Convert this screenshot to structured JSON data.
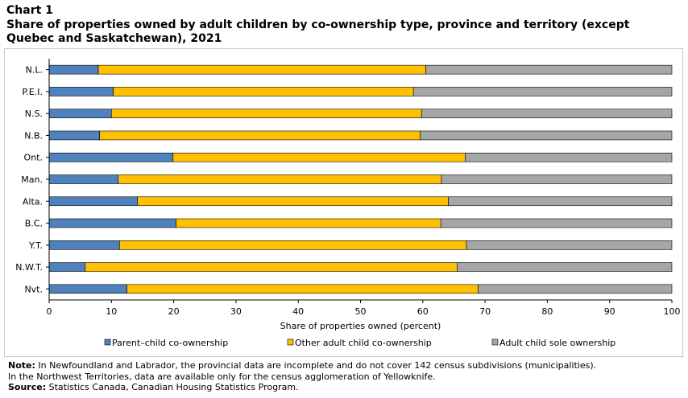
{
  "header": {
    "chart_label": "Chart 1",
    "title": "Share of properties owned by adult children  by co-ownership type, province and territory (except Quebec and Saskatchewan), 2021"
  },
  "footer": {
    "note_label": "Note:",
    "note_text": "In Newfoundland and Labrador, the provincial data are incomplete and do not cover 142 census subdivisions (municipalities).",
    "note_text_2": "In the Northwest Territories, data are available only for the census agglomeration of Yellowknife.",
    "source_label": "Source:",
    "source_text": "Statistics Canada, Canadian Housing Statistics Program."
  },
  "chart_data": {
    "type": "bar",
    "orientation": "horizontal",
    "stacked": true,
    "categories": [
      "N.L.",
      "P.E.I.",
      "N.S.",
      "N.B.",
      "Ont.",
      "Man.",
      "Alta.",
      "B.C.",
      "Y.T.",
      "N.W.T.",
      "Nvt."
    ],
    "series": [
      {
        "name": "Parent–child co-ownership",
        "color": "#4f81bd",
        "values": [
          7.9,
          10.3,
          10.0,
          8.1,
          19.9,
          11.1,
          14.2,
          20.4,
          11.3,
          5.8,
          12.5
        ]
      },
      {
        "name": "Other adult child co-ownership",
        "color": "#ffc000",
        "values": [
          52.6,
          48.2,
          49.8,
          51.5,
          46.9,
          51.9,
          49.9,
          42.5,
          55.7,
          59.7,
          56.4
        ]
      },
      {
        "name": "Adult child sole ownership",
        "color": "#a6a6a6",
        "values": [
          39.5,
          41.5,
          40.2,
          40.4,
          33.2,
          37.0,
          35.9,
          37.1,
          33.0,
          34.5,
          31.1
        ]
      }
    ],
    "xlabel": "Share of properties owned (percent)",
    "xlim": [
      0,
      100
    ],
    "xticks": [
      "0",
      "10",
      "20",
      "30",
      "40",
      "50",
      "60",
      "70",
      "80",
      "90",
      "100"
    ],
    "grid": false,
    "legend_position": "bottom"
  }
}
